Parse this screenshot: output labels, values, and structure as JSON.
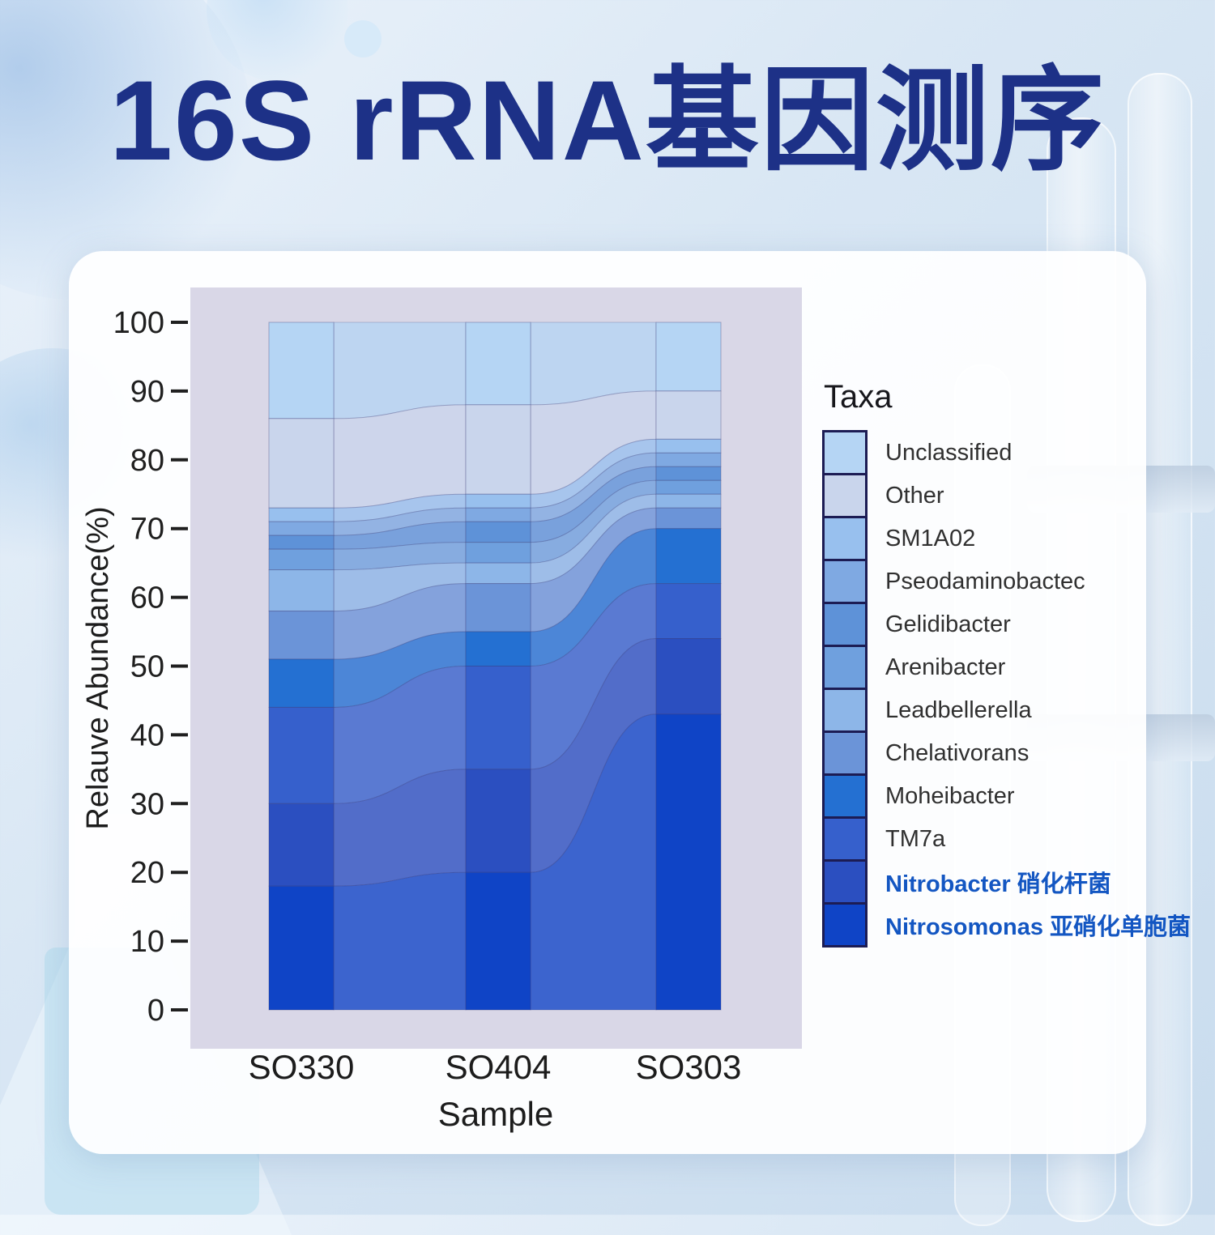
{
  "page": {
    "title": "16S rRNA基因测序"
  },
  "chart_data": {
    "type": "bar",
    "variant": "stacked-bars-with-alluvial-flows",
    "title": "16S rRNA基因测序",
    "xlabel": "Sample",
    "ylabel": "Relauve Abundance(%)",
    "ylim": [
      0,
      100
    ],
    "yticks": [
      0,
      10,
      20,
      30,
      40,
      50,
      60,
      70,
      80,
      90,
      100
    ],
    "grid": false,
    "panel_color": "#d9d7e7",
    "legend_title": "Taxa",
    "legend_position": "right",
    "categories": [
      "SO330",
      "SO404",
      "SO303"
    ],
    "series": [
      {
        "name": "Unclassified",
        "label": "Unclassified",
        "color": "#b5d5f4",
        "highlight": false,
        "values": [
          14,
          12,
          10
        ]
      },
      {
        "name": "Other",
        "label": "Other",
        "color": "#c9d5ec",
        "highlight": false,
        "values": [
          13,
          13,
          7
        ]
      },
      {
        "name": "SM1A02",
        "label": "SM1A02",
        "color": "#98c0ee",
        "highlight": false,
        "values": [
          2,
          2,
          2
        ]
      },
      {
        "name": "Pseodaminobactec",
        "label": "Pseodaminobactec",
        "color": "#7fa9e2",
        "highlight": false,
        "values": [
          2,
          2,
          2
        ]
      },
      {
        "name": "Gelidibacter",
        "label": "Gelidibacter",
        "color": "#5e92d8",
        "highlight": false,
        "values": [
          2,
          3,
          2
        ]
      },
      {
        "name": "Arenibacter",
        "label": "Arenibacter",
        "color": "#6fa0de",
        "highlight": false,
        "values": [
          3,
          3,
          2
        ]
      },
      {
        "name": "Leadbellerella",
        "label": "Leadbellerella",
        "color": "#8db6e8",
        "highlight": false,
        "values": [
          6,
          3,
          2
        ]
      },
      {
        "name": "Chelativorans",
        "label": "Chelativorans",
        "color": "#6b94d8",
        "highlight": false,
        "values": [
          7,
          7,
          3
        ]
      },
      {
        "name": "Moheibacter",
        "label": "Moheibacter",
        "color": "#2470d2",
        "highlight": false,
        "values": [
          7,
          5,
          8
        ]
      },
      {
        "name": "TM7a",
        "label": "TM7a",
        "color": "#3660cc",
        "highlight": false,
        "values": [
          14,
          15,
          8
        ]
      },
      {
        "name": "Nitrobacter",
        "label": "Nitrobacter  硝化杆菌",
        "color": "#2b4fc0",
        "highlight": true,
        "values": [
          12,
          15,
          11
        ]
      },
      {
        "name": "Nitrosomonas",
        "label": "Nitrosomonas  亚硝化单胞菌",
        "color": "#0f44c6",
        "highlight": true,
        "values": [
          18,
          20,
          43
        ]
      }
    ]
  },
  "colors": {
    "title_text": "#1d3187",
    "axis_text": "#1c1c1c",
    "legend_border": "#1c1c54",
    "highlight_label": "#1356c2",
    "card_background": "#ffffff"
  }
}
